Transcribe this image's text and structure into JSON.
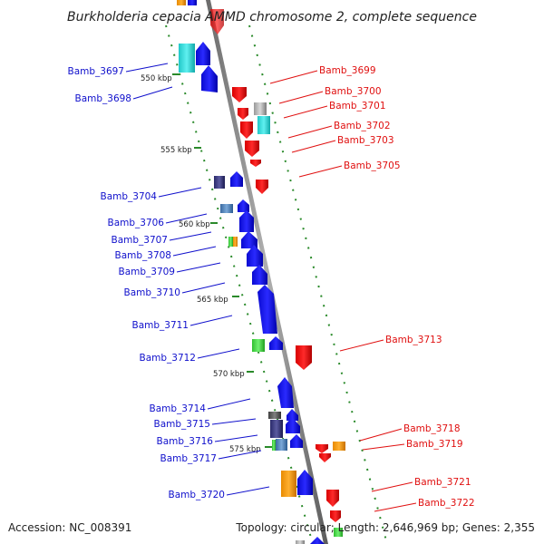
{
  "title": "Burkholderia cepacia AMMD chromosome 2, complete sequence",
  "accession": "Accession: NC_008391",
  "summary": "Topology: circular; Length: 2,646,969 bp; Genes: 2,355",
  "colors": {
    "left_label": "#1010cc",
    "right_label": "#e01010",
    "backbone": "#8a8a8a",
    "tick": "#2a8a2a",
    "forward_gene": "#1010e0",
    "reverse_gene": "#ee1010"
  },
  "kbp_ticks": [
    {
      "label": "550 kbp"
    },
    {
      "label": "555 kbp"
    },
    {
      "label": "560 kbp"
    },
    {
      "label": "565 kbp"
    },
    {
      "label": "570 kbp"
    },
    {
      "label": "575 kbp"
    }
  ],
  "left_genes": [
    {
      "label": "Bamb_3697"
    },
    {
      "label": "Bamb_3698"
    },
    {
      "label": "Bamb_3704"
    },
    {
      "label": "Bamb_3706"
    },
    {
      "label": "Bamb_3707"
    },
    {
      "label": "Bamb_3708"
    },
    {
      "label": "Bamb_3709"
    },
    {
      "label": "Bamb_3710"
    },
    {
      "label": "Bamb_3711"
    },
    {
      "label": "Bamb_3712"
    },
    {
      "label": "Bamb_3714"
    },
    {
      "label": "Bamb_3715"
    },
    {
      "label": "Bamb_3716"
    },
    {
      "label": "Bamb_3717"
    },
    {
      "label": "Bamb_3720"
    }
  ],
  "right_genes": [
    {
      "label": "Bamb_3699"
    },
    {
      "label": "Bamb_3700"
    },
    {
      "label": "Bamb_3701"
    },
    {
      "label": "Bamb_3702"
    },
    {
      "label": "Bamb_3703"
    },
    {
      "label": "Bamb_3705"
    },
    {
      "label": "Bamb_3713"
    },
    {
      "label": "Bamb_3718"
    },
    {
      "label": "Bamb_3719"
    },
    {
      "label": "Bamb_3721"
    },
    {
      "label": "Bamb_3722"
    }
  ]
}
